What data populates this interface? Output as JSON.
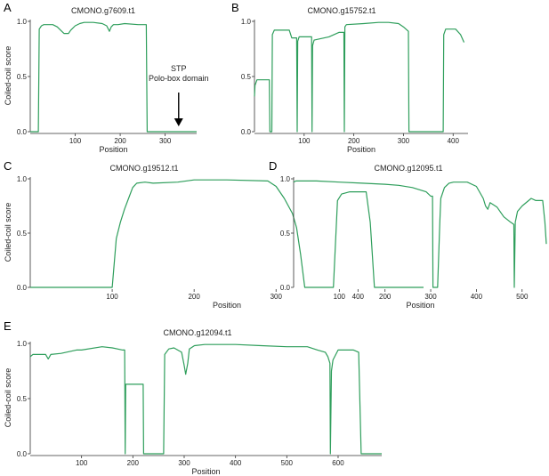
{
  "chart_data": [
    {
      "type": "line",
      "panel_letter": "A",
      "title": "CMONO.g7609.t1",
      "xlabel": "Position",
      "ylabel": "Coiled-coil score",
      "xlim": [
        0,
        370
      ],
      "ylim": [
        0,
        1.0
      ],
      "xticks": [
        100,
        200,
        300
      ],
      "yticks": [
        0.0,
        0.5,
        1.0
      ],
      "ytick_labels": [
        "0.0",
        "0.5",
        "1.0"
      ],
      "line_color": "#2e9e5b",
      "annotation": {
        "lines": [
          "STP",
          "Polo-box domain"
        ],
        "x": 330
      },
      "series": [
        {
          "x": [
            0,
            18,
            20,
            25,
            30,
            50,
            60,
            70,
            75,
            85,
            90,
            100,
            110,
            120,
            140,
            160,
            170,
            176,
            180,
            185,
            195,
            210,
            240,
            258,
            260,
            370
          ],
          "y": [
            0,
            0,
            0.93,
            0.96,
            0.97,
            0.97,
            0.95,
            0.91,
            0.89,
            0.89,
            0.92,
            0.96,
            0.98,
            0.99,
            0.99,
            0.98,
            0.96,
            0.91,
            0.95,
            0.97,
            0.97,
            0.98,
            0.97,
            0.97,
            0,
            0
          ]
        }
      ]
    },
    {
      "type": "line",
      "panel_letter": "B",
      "title": "CMONO.g15752.t1",
      "xlabel": "Position",
      "ylabel": "",
      "xlim": [
        0,
        430
      ],
      "ylim": [
        0,
        1.0
      ],
      "xticks": [
        100,
        200,
        300,
        400
      ],
      "yticks": [
        0.0,
        0.5,
        1.0
      ],
      "ytick_labels": [
        "0.0",
        "0.5",
        "1.0"
      ],
      "line_color": "#2e9e5b",
      "series": [
        {
          "x": [
            0,
            1,
            5,
            30,
            31,
            35,
            36,
            40,
            70,
            75,
            85,
            86,
            87,
            90,
            115,
            116,
            117,
            120,
            150,
            170,
            180,
            181,
            182,
            185,
            220,
            250,
            270,
            290,
            300,
            310,
            311,
            380,
            381,
            385,
            405,
            415,
            422
          ],
          "y": [
            0.32,
            0.42,
            0.47,
            0.47,
            0,
            0,
            0.88,
            0.92,
            0.92,
            0.85,
            0.85,
            0,
            0.82,
            0.86,
            0.86,
            0,
            0.78,
            0.83,
            0.86,
            0.9,
            0.9,
            0,
            0.95,
            0.97,
            0.98,
            0.99,
            0.99,
            0.98,
            0.95,
            0.91,
            0,
            0,
            0.88,
            0.93,
            0.93,
            0.88,
            0.81
          ]
        }
      ]
    },
    {
      "type": "line",
      "panel_letter": "C",
      "title": "CMONO.g19512.t1",
      "xlabel": "Position",
      "ylabel": "Coiled-coil score",
      "xlim": [
        0,
        480
      ],
      "ylim": [
        0,
        1.0
      ],
      "xticks": [
        100,
        200,
        300,
        400
      ],
      "yticks": [
        0.0,
        0.5,
        1.0
      ],
      "ytick_labels": [
        "0.0",
        "0.5",
        "1.0"
      ],
      "line_color": "#2e9e5b",
      "series": [
        {
          "x": [
            0,
            100,
            105,
            110,
            115,
            120,
            125,
            130,
            140,
            150,
            180,
            200,
            240,
            290,
            300,
            310,
            320,
            325,
            330,
            335,
            370,
            375,
            380,
            390,
            410,
            415,
            420,
            480
          ],
          "y": [
            0,
            0,
            0.45,
            0.6,
            0.72,
            0.82,
            0.92,
            0.96,
            0.97,
            0.96,
            0.97,
            0.99,
            0.99,
            0.98,
            0.93,
            0.82,
            0.68,
            0.55,
            0.3,
            0,
            0,
            0.8,
            0.86,
            0.88,
            0.88,
            0.6,
            0,
            0
          ]
        }
      ]
    },
    {
      "type": "line",
      "panel_letter": "D",
      "title": "CMONO.g12095.t1",
      "xlabel": "Position",
      "ylabel": "",
      "xlim": [
        0,
        555
      ],
      "ylim": [
        0,
        1.0
      ],
      "xticks": [
        100,
        200,
        300,
        400,
        500
      ],
      "yticks": [
        0.0,
        0.5,
        1.0
      ],
      "ytick_labels": [
        "0.0",
        "0.5",
        "1.0"
      ],
      "line_color": "#2e9e5b",
      "series": [
        {
          "x": [
            0,
            5,
            50,
            100,
            150,
            200,
            230,
            260,
            290,
            300,
            304,
            305,
            315,
            320,
            322,
            330,
            340,
            350,
            380,
            400,
            415,
            420,
            425,
            430,
            445,
            460,
            475,
            482,
            483,
            485,
            490,
            500,
            520,
            530,
            545,
            550,
            553
          ],
          "y": [
            0.97,
            0.98,
            0.98,
            0.97,
            0.96,
            0.95,
            0.94,
            0.92,
            0.88,
            0.84,
            0.84,
            0,
            0,
            0.6,
            0.82,
            0.92,
            0.96,
            0.97,
            0.97,
            0.93,
            0.82,
            0.75,
            0.72,
            0.78,
            0.74,
            0.65,
            0.6,
            0.58,
            0,
            0.6,
            0.7,
            0.75,
            0.82,
            0.8,
            0.8,
            0.6,
            0.4
          ]
        }
      ]
    },
    {
      "type": "line",
      "panel_letter": "E",
      "title": "CMONO.g12094.t1",
      "xlabel": "Position",
      "ylabel": "Coiled-coil score",
      "xlim": [
        0,
        685
      ],
      "ylim": [
        0,
        1.0
      ],
      "xticks": [
        100,
        200,
        300,
        400,
        500,
        600
      ],
      "yticks": [
        0.0,
        0.5,
        1.0
      ],
      "ytick_labels": [
        "0.0",
        "0.5",
        "1.0"
      ],
      "line_color": "#2e9e5b",
      "series": [
        {
          "x": [
            0,
            5,
            30,
            35,
            40,
            60,
            90,
            100,
            140,
            160,
            180,
            184,
            185,
            186,
            220,
            221,
            260,
            262,
            270,
            280,
            295,
            300,
            303,
            307,
            310,
            320,
            340,
            400,
            450,
            500,
            540,
            560,
            575,
            580,
            584,
            585,
            587,
            590,
            600,
            630,
            640,
            645,
            685
          ],
          "y": [
            0.88,
            0.9,
            0.9,
            0.86,
            0.9,
            0.91,
            0.94,
            0.94,
            0.97,
            0.96,
            0.94,
            0.94,
            0,
            0.63,
            0.63,
            0,
            0,
            0.9,
            0.95,
            0.96,
            0.92,
            0.8,
            0.72,
            0.82,
            0.95,
            0.98,
            0.99,
            0.99,
            0.98,
            0.97,
            0.97,
            0.94,
            0.92,
            0.88,
            0.82,
            0,
            0.75,
            0.85,
            0.94,
            0.94,
            0.92,
            0,
            0
          ]
        }
      ]
    }
  ]
}
